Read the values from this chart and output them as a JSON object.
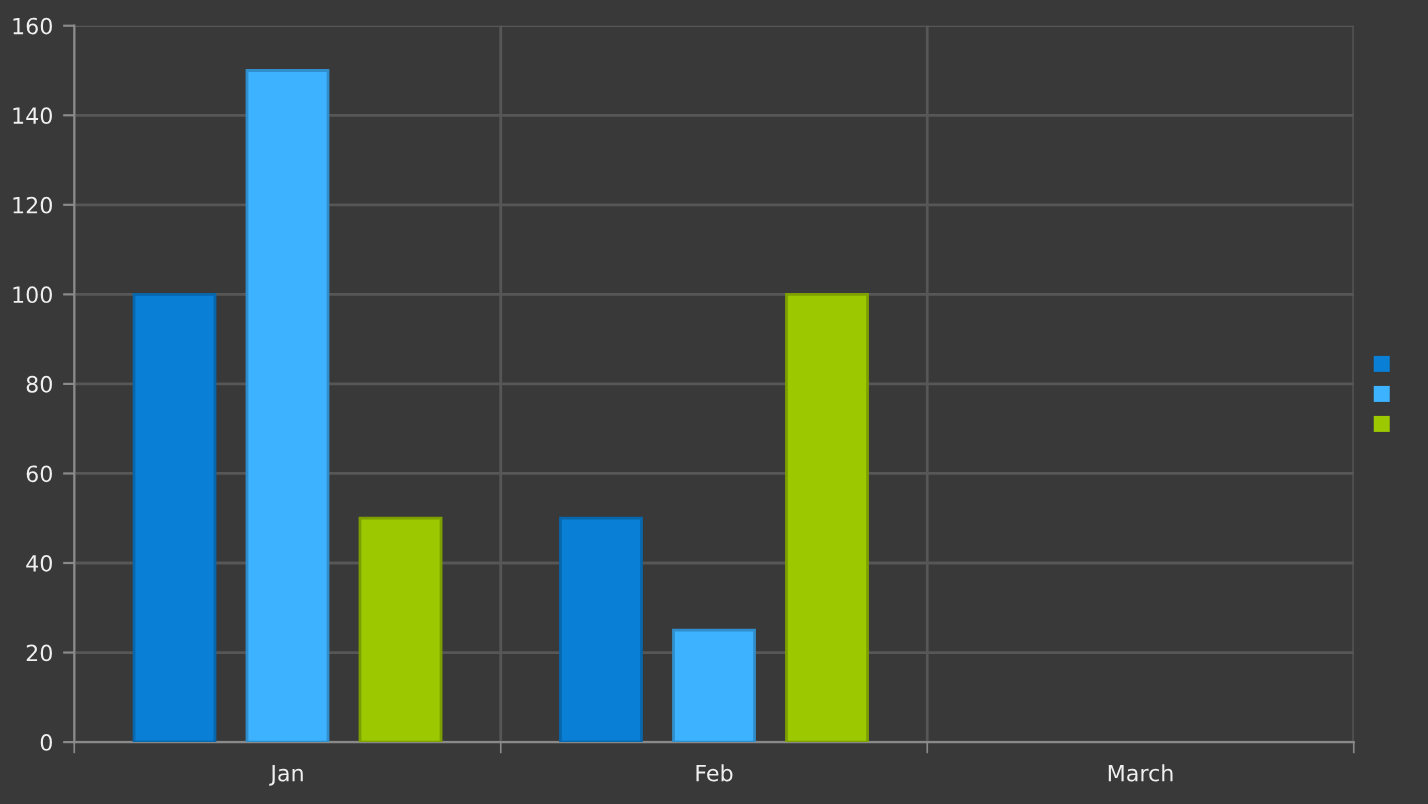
{
  "chart_data": {
    "type": "bar",
    "categories": [
      "Jan",
      "Feb",
      "March"
    ],
    "series": [
      {
        "color": "#0a7fd6",
        "values": [
          100,
          50,
          null
        ]
      },
      {
        "color": "#3db2ff",
        "values": [
          150,
          25,
          null
        ]
      },
      {
        "color": "#9cc800",
        "values": [
          50,
          100,
          null
        ]
      }
    ],
    "ylim": [
      0,
      160
    ],
    "yticks": [
      0,
      20,
      40,
      60,
      80,
      100,
      120,
      140,
      160
    ],
    "grid": true
  }
}
